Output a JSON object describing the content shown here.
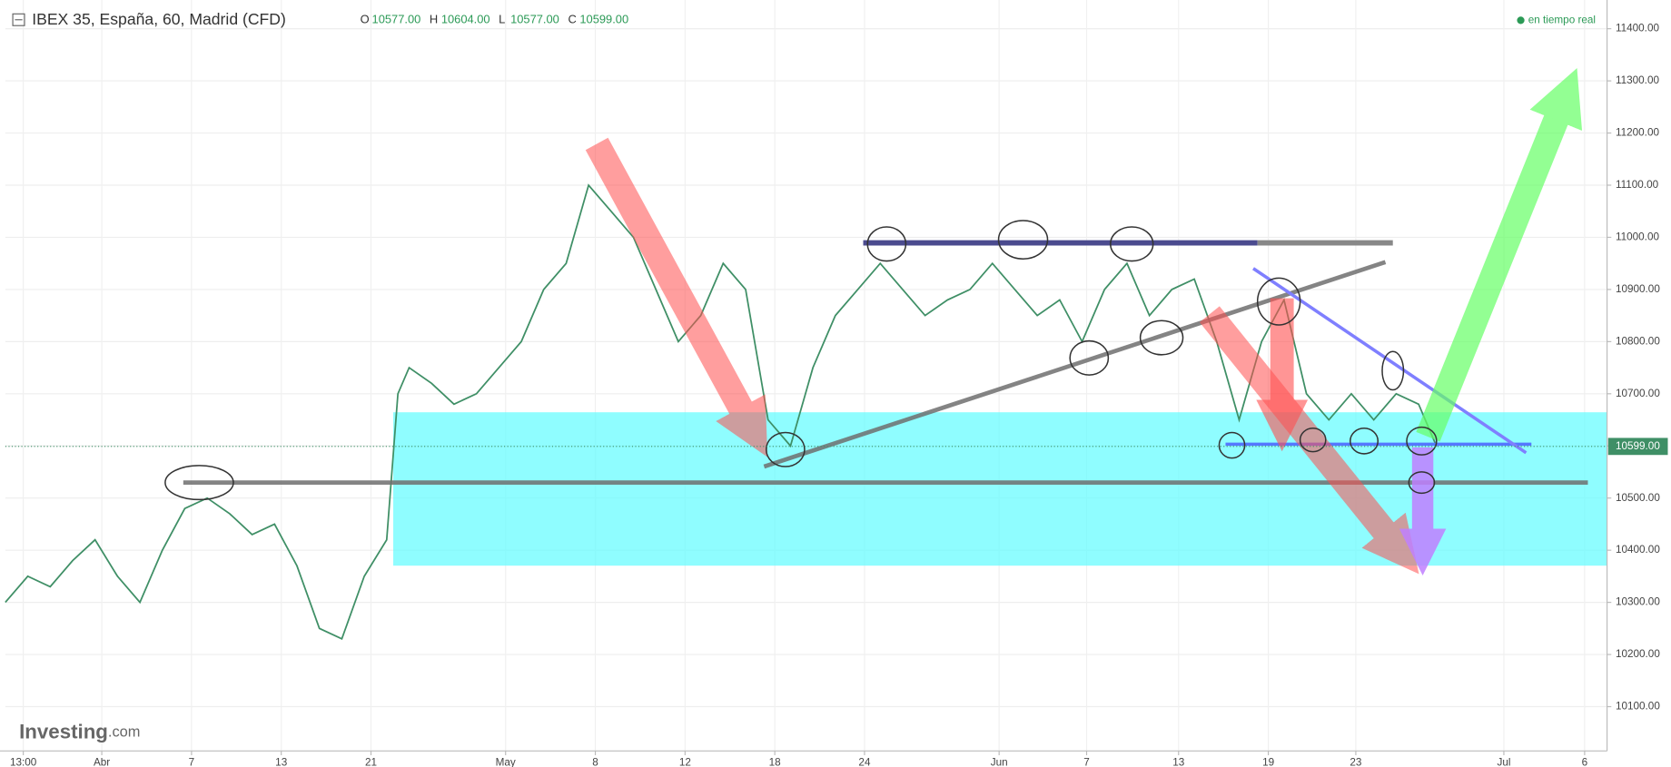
{
  "chart_data": {
    "type": "line",
    "title": "IBEX 35, España, 60, Madrid (CFD)",
    "ohlc": [
      {
        "key": "O",
        "text": "10577.00"
      },
      {
        "key": "H",
        "text": "10604.00"
      },
      {
        "key": "L",
        "text": "10577.00"
      },
      {
        "key": "C",
        "text": "10599.00"
      }
    ],
    "status": "en tiempo real",
    "brand": "Investing",
    "brand_suffix": ".com",
    "last_price": {
      "value": 10599,
      "label": "10599.00"
    },
    "x": [
      0,
      1,
      2,
      3,
      4,
      5,
      6,
      7,
      8,
      9,
      10,
      11,
      12,
      13,
      14,
      15,
      16,
      17,
      17.5,
      18,
      19,
      20,
      21,
      22,
      23,
      24,
      25,
      26,
      27,
      28,
      29,
      30,
      31,
      32,
      33,
      34,
      35,
      36,
      37,
      38,
      39,
      40,
      41,
      42,
      43,
      44,
      45,
      46,
      47,
      48,
      49,
      50,
      51,
      52,
      53,
      54,
      55,
      56,
      57,
      58,
      59,
      60,
      61,
      62,
      63,
      63.8
    ],
    "series": [
      {
        "name": "IBEX 35",
        "color": "#3f8f66",
        "values": [
          10300,
          10350,
          10330,
          10380,
          10420,
          10350,
          10300,
          10400,
          10480,
          10500,
          10470,
          10430,
          10450,
          10370,
          10250,
          10230,
          10350,
          10420,
          10700,
          10750,
          10720,
          10680,
          10700,
          10750,
          10800,
          10900,
          10950,
          11100,
          11050,
          11000,
          10900,
          10800,
          10850,
          10950,
          10900,
          10650,
          10600,
          10750,
          10850,
          10900,
          10950,
          10900,
          10850,
          10880,
          10900,
          10950,
          10900,
          10850,
          10880,
          10800,
          10900,
          10950,
          10850,
          10900,
          10920,
          10800,
          10650,
          10800,
          10880,
          10700,
          10650,
          10700,
          10650,
          10700,
          10680,
          10599
        ]
      }
    ],
    "xlim": [
      0,
      71.4
    ],
    "xticks": [
      {
        "value": 0.8,
        "label": "13:00"
      },
      {
        "value": 4.3,
        "label": "Abr"
      },
      {
        "value": 8.3,
        "label": "7"
      },
      {
        "value": 12.3,
        "label": "13"
      },
      {
        "value": 16.3,
        "label": "21"
      },
      {
        "value": 22.3,
        "label": "May"
      },
      {
        "value": 26.3,
        "label": "8"
      },
      {
        "value": 30.3,
        "label": "12"
      },
      {
        "value": 34.3,
        "label": "18"
      },
      {
        "value": 38.3,
        "label": "24"
      },
      {
        "value": 44.3,
        "label": "Jun"
      },
      {
        "value": 48.2,
        "label": "7"
      },
      {
        "value": 52.3,
        "label": "13"
      },
      {
        "value": 56.3,
        "label": "19"
      },
      {
        "value": 60.2,
        "label": "23"
      },
      {
        "value": 66.8,
        "label": "Jul"
      },
      {
        "value": 70.4,
        "label": "6"
      }
    ],
    "ylim": [
      10015,
      11455
    ],
    "yticks": [
      {
        "value": 10100,
        "label": "10100.00"
      },
      {
        "value": 10200,
        "label": "10200.00"
      },
      {
        "value": 10300,
        "label": "10300.00"
      },
      {
        "value": 10400,
        "label": "10400.00"
      },
      {
        "value": 10500,
        "label": "10500.00"
      },
      {
        "value": 10600,
        "label": "10600.00"
      },
      {
        "value": 10700,
        "label": "10700.00"
      },
      {
        "value": 10800,
        "label": "10800.00"
      },
      {
        "value": 10900,
        "label": "10900.00"
      },
      {
        "value": 11000,
        "label": "11000.00"
      },
      {
        "value": 11100,
        "label": "11100.00"
      },
      {
        "value": 11200,
        "label": "11200.00"
      },
      {
        "value": 11300,
        "label": "11300.00"
      },
      {
        "value": 11400,
        "label": "11400.00"
      }
    ],
    "grid": true
  }
}
